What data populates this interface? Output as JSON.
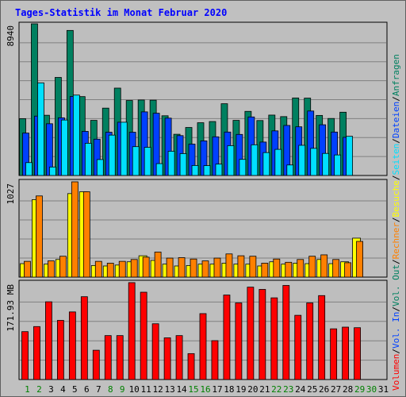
{
  "colors": {
    "frame_bg": "#c0c0c0",
    "panel_bg": "#bebebe",
    "outer_border": "#606060",
    "grid": "#808080",
    "title": "#0000ff",
    "anfragen": "#008060",
    "dateien": "#0040ff",
    "seiten": "#00e0ff",
    "besuche": "#ffff00",
    "rechner": "#ff8000",
    "volumen": "#ff0000",
    "bar_edge": "#000000",
    "x_label_weekday": "#000000",
    "x_label_weekend": "#008000"
  },
  "chart_data": {
    "type": "bar",
    "title": "Tages-Statistik im Monat Februar 2020",
    "categories": [
      "1",
      "2",
      "3",
      "4",
      "5",
      "6",
      "7",
      "8",
      "9",
      "10",
      "11",
      "12",
      "13",
      "14",
      "15",
      "16",
      "17",
      "18",
      "19",
      "20",
      "21",
      "22",
      "23",
      "24",
      "25",
      "26",
      "27",
      "28",
      "29",
      "30",
      "31"
    ],
    "weekend_days": [
      1,
      2,
      8,
      9,
      15,
      16,
      22,
      23,
      29,
      30
    ],
    "panels": [
      {
        "name": "top",
        "max_label": "8940",
        "ymax": 8940,
        "series": [
          {
            "name": "Anfragen",
            "color_key": "anfragen",
            "values": [
              3350,
              8940,
              3550,
              5780,
              8550,
              4650,
              3250,
              3970,
              5150,
              4420,
              4450,
              4440,
              3520,
              2430,
              2830,
              3110,
              3180,
              4230,
              3250,
              3780,
              3240,
              3560,
              3470,
              4570,
              4560,
              3540,
              3360,
              3730,
              0,
              0,
              0
            ]
          },
          {
            "name": "Dateien",
            "color_key": "dateien",
            "values": [
              2500,
              3500,
              3050,
              3400,
              4660,
              2600,
              2140,
              2550,
              3140,
              2550,
              3750,
              3670,
              3380,
              2350,
              1850,
              2040,
              2280,
              2560,
              2420,
              3450,
              1970,
              2630,
              2950,
              2870,
              3800,
              2990,
              2560,
              2250,
              0,
              0,
              0
            ]
          },
          {
            "name": "Seiten",
            "color_key": "seiten",
            "values": [
              760,
              5460,
              500,
              3270,
              4740,
              1900,
              940,
              2380,
              3140,
              1700,
              1660,
              700,
              1430,
              1290,
              590,
              580,
              670,
              1760,
              950,
              1810,
              1350,
              1540,
              620,
              1780,
              1600,
              1300,
              1210,
              2310,
              0,
              0,
              0
            ]
          }
        ]
      },
      {
        "name": "middle",
        "max_label": "1027",
        "ymax": 1027,
        "series": [
          {
            "name": "Besuche",
            "color_key": "besuche",
            "values": [
              145,
              835,
              140,
              190,
              900,
              920,
              125,
              120,
              130,
              165,
              230,
              180,
              140,
              120,
              125,
              140,
              140,
              150,
              140,
              140,
              120,
              165,
              140,
              150,
              145,
              190,
              145,
              165,
              420,
              0,
              0
            ]
          },
          {
            "name": "Rechner",
            "color_key": "rechner",
            "values": [
              170,
              875,
              175,
              225,
              1027,
              920,
              170,
              150,
              170,
              190,
              215,
              270,
              205,
              210,
              195,
              175,
              205,
              250,
              230,
              225,
              150,
              195,
              160,
              190,
              225,
              240,
              190,
              155,
              385,
              0,
              0
            ]
          }
        ]
      },
      {
        "name": "bottom",
        "max_label": "171.93 MB",
        "ymax": 171.93,
        "series": [
          {
            "name": "Volumen",
            "color_key": "volumen",
            "values": [
              85,
              94,
              138,
              105,
              120,
              147,
              52,
              78,
              78,
              172,
              155,
              99,
              74,
              78,
              46,
              117,
              69,
              150,
              136,
              164,
              160,
              145,
              167,
              114,
              136,
              149,
              90,
              93,
              92,
              0,
              0
            ]
          }
        ]
      }
    ],
    "right_legend": [
      {
        "text": "Anfragen",
        "color_key": "anfragen"
      },
      {
        "text": "Dateien",
        "color_key": "dateien"
      },
      {
        "text": "Seiten",
        "color_key": "seiten"
      },
      {
        "text": "Besuche",
        "color_key": "besuche"
      },
      {
        "text": "Rechner",
        "color_key": "rechner"
      },
      {
        "text": "Vol. Out",
        "color_key": "anfragen"
      },
      {
        "text": "Vol. In",
        "color_key": "dateien"
      },
      {
        "text": "Volumen",
        "color_key": "volumen"
      }
    ]
  }
}
